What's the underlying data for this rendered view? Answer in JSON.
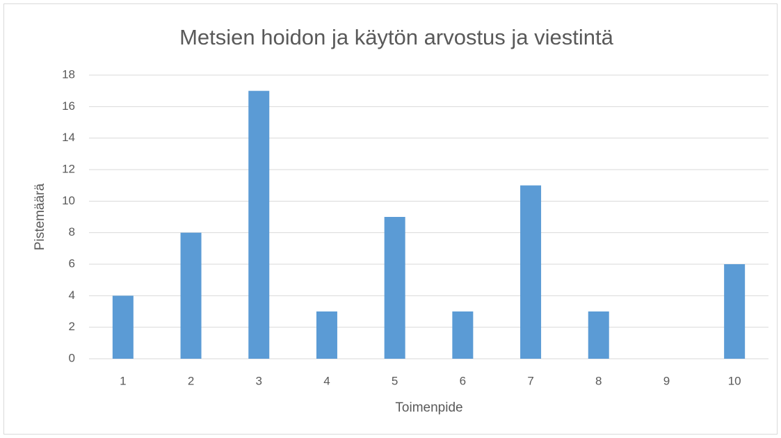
{
  "chart_data": {
    "type": "bar",
    "title": "Metsien hoidon ja käytön arvostus ja viestintä",
    "xlabel": "Toimenpide",
    "ylabel": "Pistemäärä",
    "categories": [
      "1",
      "2",
      "3",
      "4",
      "5",
      "6",
      "7",
      "8",
      "9",
      "10"
    ],
    "values": [
      4,
      8,
      17,
      3,
      9,
      3,
      11,
      3,
      0,
      6
    ],
    "color": "#5b9bd5",
    "ylim": [
      0,
      18
    ],
    "yticks": [
      0,
      2,
      4,
      6,
      8,
      10,
      12,
      14,
      16,
      18
    ],
    "grid": true
  }
}
